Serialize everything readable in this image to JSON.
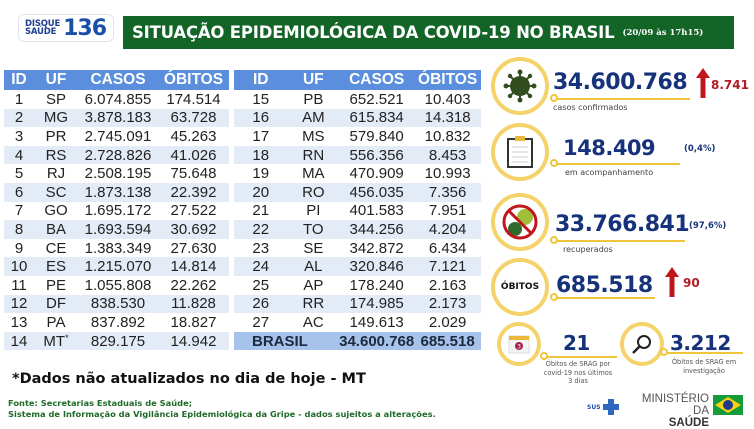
{
  "header": {
    "logo_line1": "DISQUE",
    "logo_line2": "SAÚDE",
    "logo_number": "136",
    "title": "SITUAÇÃO EPIDEMIOLÓGICA DA COVID-19 NO BRASIL",
    "date": "(20/09 às 17h15)"
  },
  "table": {
    "columns": [
      "ID",
      "UF",
      "CASOS",
      "ÓBITOS"
    ],
    "left_rows": [
      {
        "id": "1",
        "uf": "SP",
        "casos": "6.074.855",
        "obitos": "174.514"
      },
      {
        "id": "2",
        "uf": "MG",
        "casos": "3.878.183",
        "obitos": "63.728"
      },
      {
        "id": "3",
        "uf": "PR",
        "casos": "2.745.091",
        "obitos": "45.263"
      },
      {
        "id": "4",
        "uf": "RS",
        "casos": "2.728.826",
        "obitos": "41.026"
      },
      {
        "id": "5",
        "uf": "RJ",
        "casos": "2.508.195",
        "obitos": "75.648"
      },
      {
        "id": "6",
        "uf": "SC",
        "casos": "1.873.138",
        "obitos": "22.392"
      },
      {
        "id": "7",
        "uf": "GO",
        "casos": "1.695.172",
        "obitos": "27.522"
      },
      {
        "id": "8",
        "uf": "BA",
        "casos": "1.693.594",
        "obitos": "30.692"
      },
      {
        "id": "9",
        "uf": "CE",
        "casos": "1.383.349",
        "obitos": "27.630"
      },
      {
        "id": "10",
        "uf": "ES",
        "casos": "1.215.070",
        "obitos": "14.814"
      },
      {
        "id": "11",
        "uf": "PE",
        "casos": "1.055.808",
        "obitos": "22.262"
      },
      {
        "id": "12",
        "uf": "DF",
        "casos": "838.530",
        "obitos": "11.828"
      },
      {
        "id": "13",
        "uf": "PA",
        "casos": "837.892",
        "obitos": "18.827"
      },
      {
        "id": "14",
        "uf": "MT",
        "uf_mark": "*",
        "casos": "829.175",
        "obitos": "14.942"
      }
    ],
    "right_rows": [
      {
        "id": "15",
        "uf": "PB",
        "casos": "652.521",
        "obitos": "10.403"
      },
      {
        "id": "16",
        "uf": "AM",
        "casos": "615.834",
        "obitos": "14.318"
      },
      {
        "id": "17",
        "uf": "MS",
        "casos": "579.840",
        "obitos": "10.832"
      },
      {
        "id": "18",
        "uf": "RN",
        "casos": "556.356",
        "obitos": "8.453"
      },
      {
        "id": "19",
        "uf": "MA",
        "casos": "470.909",
        "obitos": "10.993"
      },
      {
        "id": "20",
        "uf": "RO",
        "casos": "456.035",
        "obitos": "7.356"
      },
      {
        "id": "21",
        "uf": "PI",
        "casos": "401.583",
        "obitos": "7.951"
      },
      {
        "id": "22",
        "uf": "TO",
        "casos": "344.256",
        "obitos": "4.204"
      },
      {
        "id": "23",
        "uf": "SE",
        "casos": "342.872",
        "obitos": "6.434"
      },
      {
        "id": "24",
        "uf": "AL",
        "casos": "320.846",
        "obitos": "7.121"
      },
      {
        "id": "25",
        "uf": "AP",
        "casos": "178.240",
        "obitos": "2.163"
      },
      {
        "id": "26",
        "uf": "RR",
        "casos": "174.985",
        "obitos": "2.173"
      },
      {
        "id": "27",
        "uf": "AC",
        "casos": "149.613",
        "obitos": "2.029"
      }
    ],
    "total": {
      "label": "BRASIL",
      "casos": "34.600.768",
      "obitos": "685.518"
    }
  },
  "note": "*Dados não atualizados no dia de hoje - MT",
  "source": {
    "line1": "Fonte: Secretarias Estaduais de Saúde;",
    "line2": "Sistema de Informação da Vigilância Epidemiológica da Gripe - dados sujeitos a alterações."
  },
  "stats": {
    "confirmed": {
      "value": "34.600.768",
      "delta": "8.741",
      "label": "casos confirmados",
      "icon": "virus-icon"
    },
    "monitoring": {
      "value": "148.409",
      "pct": "(0,4%)",
      "label": "em acompanhamento",
      "icon": "clipboard-icon"
    },
    "recovered": {
      "value": "33.766.841",
      "pct": "(97,6%)",
      "label": "recuperados",
      "icon": "no-virus-icon"
    },
    "deaths": {
      "badge": "ÓBITOS",
      "value": "685.518",
      "delta": "90"
    },
    "srag_recent": {
      "value": "21",
      "calendar_num": "3",
      "label_lines": [
        "Óbitos de SRAG por",
        "covid-19 nos últimos",
        "3 dias"
      ]
    },
    "srag_investigation": {
      "value": "3.212",
      "label_lines": [
        "Óbitos de SRAG em",
        "investigação"
      ]
    }
  },
  "footer": {
    "sus": "SUS",
    "ministry_line1": "MINISTÉRIO DA",
    "ministry_line2": "SAÚDE"
  },
  "colors": {
    "title_green": "#136427",
    "header_blue": "#5b8fde",
    "row_alt": "#e3ebf7",
    "total_row": "#a7c3ec",
    "value_blue": "#15327a",
    "delta_red": "#b01c22",
    "ring_yellow": "#f3d36a"
  }
}
